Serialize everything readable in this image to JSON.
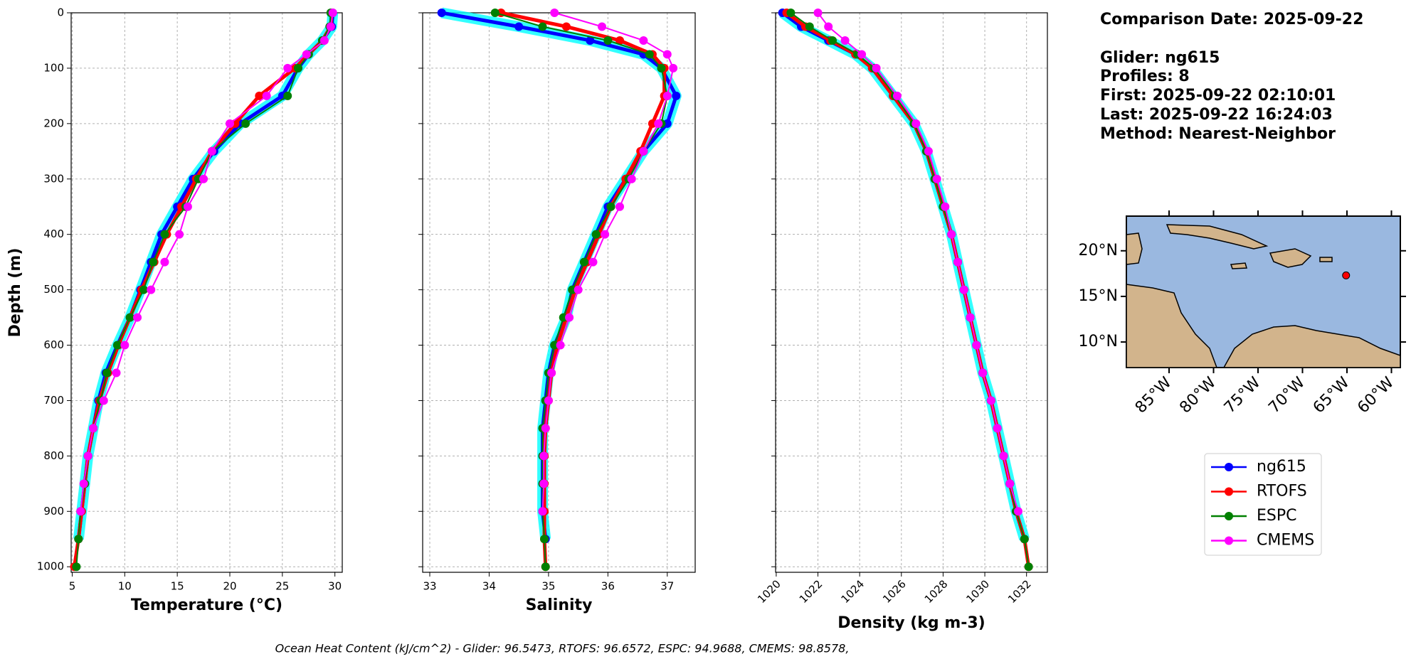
{
  "chart_data": [
    {
      "type": "line",
      "xlabel": "Temperature (°C)",
      "ylabel": "Depth (m)",
      "y": [
        0,
        25,
        50,
        75,
        100,
        150,
        200,
        250,
        300,
        350,
        400,
        450,
        500,
        550,
        600,
        650,
        700,
        750,
        800,
        850,
        900,
        950,
        1000
      ],
      "series": [
        {
          "name": "ng615",
          "color": "#0000ff",
          "band_color": "#00ffff",
          "width": 5,
          "values": [
            29.8,
            29.7,
            28.8,
            27.5,
            26.5,
            25,
            21,
            18.5,
            16.5,
            15,
            13.5,
            12.5,
            11.5,
            10.5,
            9.3,
            8.2,
            7.5,
            7,
            6.5,
            6.2,
            5.9,
            5.6,
            null
          ]
        },
        {
          "name": "RTOFS",
          "color": "#ff0000",
          "width": 5,
          "values": [
            29.7,
            29.6,
            28.8,
            27.5,
            26.2,
            22.8,
            20.5,
            18.3,
            16.8,
            15.4,
            14,
            12.8,
            11.6,
            10.5,
            9.4,
            8.4,
            7.6,
            7,
            6.5,
            6.2,
            5.9,
            5.6,
            5.2
          ]
        },
        {
          "name": "ESPC",
          "color": "#008000",
          "width": 2,
          "values": [
            29.6,
            29.5,
            28.8,
            27.5,
            26.5,
            25.5,
            21.5,
            18.3,
            17,
            15.8,
            13.8,
            12.7,
            11.8,
            10.5,
            9.3,
            8.3,
            7.7,
            7,
            6.5,
            6.2,
            5.8,
            5.6,
            5.4
          ]
        },
        {
          "name": "CMEMS",
          "color": "#ff00ff",
          "width": 2,
          "values": [
            29.8,
            29.6,
            29,
            27.3,
            25.5,
            23.5,
            20,
            18.3,
            17.5,
            16,
            15.2,
            13.8,
            12.5,
            11.2,
            10,
            9.2,
            8,
            7,
            6.5,
            6.1,
            5.8,
            null,
            null
          ]
        }
      ],
      "xlim": [
        4.9,
        30.7
      ],
      "ylim": [
        1010,
        0
      ],
      "xticks": [
        5,
        10,
        15,
        20,
        25,
        30
      ],
      "yticks": [
        0,
        100,
        200,
        300,
        400,
        500,
        600,
        700,
        800,
        900,
        1000
      ],
      "grid": true
    },
    {
      "type": "line",
      "xlabel": "Salinity",
      "y": [
        0,
        25,
        50,
        75,
        100,
        150,
        200,
        250,
        300,
        350,
        400,
        450,
        500,
        550,
        600,
        650,
        700,
        750,
        800,
        850,
        900,
        950,
        1000
      ],
      "series": [
        {
          "name": "ng615",
          "color": "#0000ff",
          "band_color": "#00ffff",
          "width": 5,
          "values": [
            33.2,
            34.5,
            35.7,
            36.6,
            36.9,
            37.15,
            37,
            36.6,
            36.3,
            36,
            35.8,
            35.6,
            35.4,
            35.3,
            35.1,
            35,
            34.95,
            34.9,
            34.9,
            34.9,
            34.9,
            34.95,
            null
          ]
        },
        {
          "name": "RTOFS",
          "color": "#ff0000",
          "width": 5,
          "values": [
            34.2,
            35.3,
            36.2,
            36.75,
            36.95,
            36.95,
            36.75,
            36.55,
            36.3,
            36.05,
            35.85,
            35.65,
            35.45,
            35.3,
            35.15,
            35.05,
            35,
            34.95,
            34.93,
            34.93,
            34.93,
            34.93,
            34.95
          ]
        },
        {
          "name": "ESPC",
          "color": "#008000",
          "width": 2,
          "values": [
            34.1,
            34.9,
            36,
            36.7,
            36.9,
            37,
            36.9,
            36.6,
            36.35,
            36.05,
            35.8,
            35.6,
            35.4,
            35.25,
            35.1,
            35,
            34.95,
            34.9,
            34.9,
            34.9,
            34.9,
            34.93,
            34.95
          ]
        },
        {
          "name": "CMEMS",
          "color": "#ff00ff",
          "width": 2,
          "values": [
            35.1,
            35.9,
            36.6,
            37,
            37.1,
            37,
            36.85,
            36.6,
            36.4,
            36.2,
            35.95,
            35.75,
            35.5,
            35.35,
            35.2,
            35.05,
            35,
            34.95,
            34.92,
            34.92,
            34.9,
            null,
            null
          ]
        }
      ],
      "xlim": [
        32.88,
        37.47
      ],
      "ylim": [
        1010,
        0
      ],
      "xticks": [
        33,
        34,
        35,
        36,
        37
      ],
      "yticks": [
        0,
        100,
        200,
        300,
        400,
        500,
        600,
        700,
        800,
        900,
        1000
      ],
      "grid": true
    },
    {
      "type": "line",
      "xlabel": "Density (kg m-3)",
      "y": [
        0,
        25,
        50,
        75,
        100,
        150,
        200,
        250,
        300,
        350,
        400,
        450,
        500,
        550,
        600,
        650,
        700,
        750,
        800,
        850,
        900,
        950,
        1000
      ],
      "series": [
        {
          "name": "ng615",
          "color": "#0000ff",
          "band_color": "#00ffff",
          "width": 5,
          "values": [
            1020.3,
            1021.2,
            1022.5,
            1023.8,
            1024.6,
            1025.6,
            1026.6,
            1027.2,
            1027.6,
            1028,
            1028.4,
            1028.7,
            1029,
            1029.3,
            1029.6,
            1029.9,
            1030.3,
            1030.6,
            1030.9,
            1031.2,
            1031.5,
            1031.9,
            null
          ]
        },
        {
          "name": "RTOFS",
          "color": "#ff0000",
          "width": 5,
          "values": [
            1020.5,
            1021.4,
            1022.6,
            1023.8,
            1024.6,
            1025.6,
            1026.6,
            1027.2,
            1027.6,
            1028,
            1028.4,
            1028.7,
            1029,
            1029.3,
            1029.6,
            1029.9,
            1030.3,
            1030.6,
            1030.9,
            1031.2,
            1031.5,
            1031.9,
            1032.1
          ]
        },
        {
          "name": "ESPC",
          "color": "#008000",
          "width": 2,
          "values": [
            1020.7,
            1021.6,
            1022.7,
            1023.9,
            1024.7,
            1025.7,
            1026.6,
            1027.2,
            1027.6,
            1028,
            1028.4,
            1028.7,
            1029,
            1029.3,
            1029.6,
            1029.9,
            1030.3,
            1030.6,
            1030.9,
            1031.2,
            1031.5,
            1031.9,
            1032.1
          ]
        },
        {
          "name": "CMEMS",
          "color": "#ff00ff",
          "width": 2,
          "values": [
            1022,
            1022.5,
            1023.3,
            1024.1,
            1024.8,
            1025.8,
            1026.7,
            1027.3,
            1027.7,
            1028.1,
            1028.4,
            1028.7,
            1029,
            1029.3,
            1029.6,
            1029.9,
            1030.3,
            1030.6,
            1030.9,
            1031.2,
            1031.6,
            null,
            null
          ]
        }
      ],
      "xlim": [
        1019.97,
        1033
      ],
      "ylim": [
        1010,
        0
      ],
      "xticks": [
        1020,
        1022,
        1024,
        1026,
        1028,
        1030,
        1032
      ],
      "yticks": [
        0,
        100,
        200,
        300,
        400,
        500,
        600,
        700,
        800,
        900,
        1000
      ],
      "grid": true
    }
  ],
  "info": [
    "Comparison Date: 2025-09-22",
    "Glider: ng615",
    "Profiles: 8",
    "First: 2025-09-22 02:10:01",
    "Last: 2025-09-22 16:24:03",
    "Method: Nearest-Neighbor"
  ],
  "map": {
    "xlim": [
      -89.8,
      -59
    ],
    "ylim": [
      7.2,
      23.8
    ],
    "xticks": [
      {
        "value": -85,
        "label": "85°W"
      },
      {
        "value": -80,
        "label": "80°W"
      },
      {
        "value": -75,
        "label": "75°W"
      },
      {
        "value": -70,
        "label": "70°W"
      },
      {
        "value": -65,
        "label": "65°W"
      },
      {
        "value": -60,
        "label": "60°W"
      }
    ],
    "yticks": [
      {
        "value": 10,
        "label": "10°N"
      },
      {
        "value": 15,
        "label": "15°N"
      },
      {
        "value": 20,
        "label": "20°N"
      }
    ],
    "glider_position": [
      -65.1,
      17.3
    ],
    "glider_color": "#ff0000"
  },
  "footnote": "Ocean Heat Content (kJ/cm^2) - Glider: 96.5473,  RTOFS: 96.6572,  ESPC: 94.9688,  CMEMS: 98.8578,"
}
